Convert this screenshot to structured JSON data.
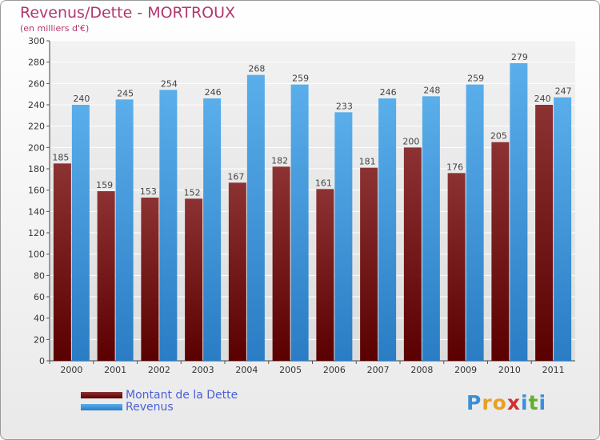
{
  "header": {
    "title": "Revenus/Dette - MORTROUX",
    "subtitle": "(en milliers d'€)"
  },
  "colors": {
    "dette": "#7a1c1c",
    "revenus": "#3a9ae0",
    "title": "#b2366e",
    "legend_text": "#4a60d8"
  },
  "chart_data": {
    "type": "bar",
    "title": "Revenus/Dette - MORTROUX",
    "subtitle": "(en milliers d'€)",
    "categories": [
      "2000",
      "2001",
      "2002",
      "2003",
      "2004",
      "2005",
      "2006",
      "2007",
      "2008",
      "2009",
      "2010",
      "2011"
    ],
    "series": [
      {
        "name": "Montant de la Dette",
        "values": [
          185,
          159,
          153,
          152,
          167,
          182,
          161,
          181,
          200,
          176,
          205,
          240
        ]
      },
      {
        "name": "Revenus",
        "values": [
          240,
          245,
          254,
          246,
          268,
          259,
          233,
          246,
          248,
          259,
          279,
          247
        ]
      }
    ],
    "ylim": [
      0,
      300
    ],
    "yticks": [
      0,
      20,
      40,
      60,
      80,
      100,
      120,
      140,
      160,
      180,
      200,
      220,
      240,
      260,
      280,
      300
    ],
    "grid": true,
    "legend_position": "bottom-left"
  },
  "legend": {
    "items": [
      {
        "label": "Montant de la Dette"
      },
      {
        "label": "Revenus"
      }
    ]
  },
  "logo": {
    "letters": [
      "P",
      "r",
      "o",
      "x",
      "i",
      "t",
      "i"
    ],
    "colors": [
      "#3a8fd8",
      "#e8a020",
      "#e8a020",
      "#d03030",
      "#3a8fd8",
      "#60b030",
      "#3a8fd8"
    ]
  }
}
